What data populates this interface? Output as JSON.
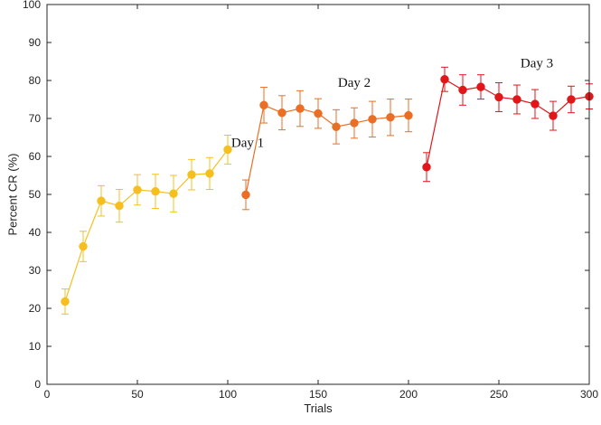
{
  "chart_data": {
    "type": "line",
    "title": "",
    "xlabel": "Trials",
    "ylabel": "Percent CR (%)",
    "xlim": [
      0,
      300
    ],
    "ylim": [
      0,
      100
    ],
    "xticks": [
      0,
      50,
      100,
      150,
      200,
      250,
      300
    ],
    "yticks": [
      0,
      10,
      20,
      30,
      40,
      50,
      60,
      70,
      80,
      90,
      100
    ],
    "grid": false,
    "series": [
      {
        "name": "Day 1",
        "color": "#f5c01f",
        "x": [
          10,
          20,
          30,
          40,
          50,
          60,
          70,
          80,
          90,
          100
        ],
        "y": [
          21.8,
          36.3,
          48.3,
          47.0,
          51.2,
          50.8,
          50.2,
          55.2,
          55.5,
          61.8
        ],
        "err": [
          3.3,
          4.0,
          4.0,
          4.3,
          4.0,
          4.5,
          4.8,
          4.0,
          4.2,
          3.8
        ]
      },
      {
        "name": "Day 2",
        "color": "#ea6f25",
        "x": [
          110,
          120,
          130,
          140,
          150,
          160,
          170,
          180,
          190,
          200
        ],
        "y": [
          49.9,
          73.5,
          71.5,
          72.6,
          71.3,
          67.8,
          68.8,
          69.8,
          70.3,
          70.8
        ],
        "err": [
          3.9,
          4.7,
          4.5,
          4.7,
          3.9,
          4.5,
          4.0,
          4.7,
          4.8,
          4.3
        ]
      },
      {
        "name": "Day 3",
        "color": "#e0161b",
        "x": [
          210,
          220,
          230,
          240,
          250,
          260,
          270,
          280,
          290,
          300
        ],
        "y": [
          57.2,
          80.3,
          77.5,
          78.3,
          75.6,
          75.0,
          73.8,
          70.7,
          75.0,
          75.8
        ],
        "err": [
          3.8,
          3.2,
          4.0,
          3.2,
          3.8,
          3.8,
          3.8,
          3.8,
          3.5,
          3.3
        ]
      }
    ],
    "annotations": [
      {
        "text": "Day 1",
        "x": 111,
        "y": 62.5
      },
      {
        "text": "Day 2",
        "x": 170,
        "y": 78.3
      },
      {
        "text": "Day 3",
        "x": 271,
        "y": 83.5
      }
    ]
  }
}
